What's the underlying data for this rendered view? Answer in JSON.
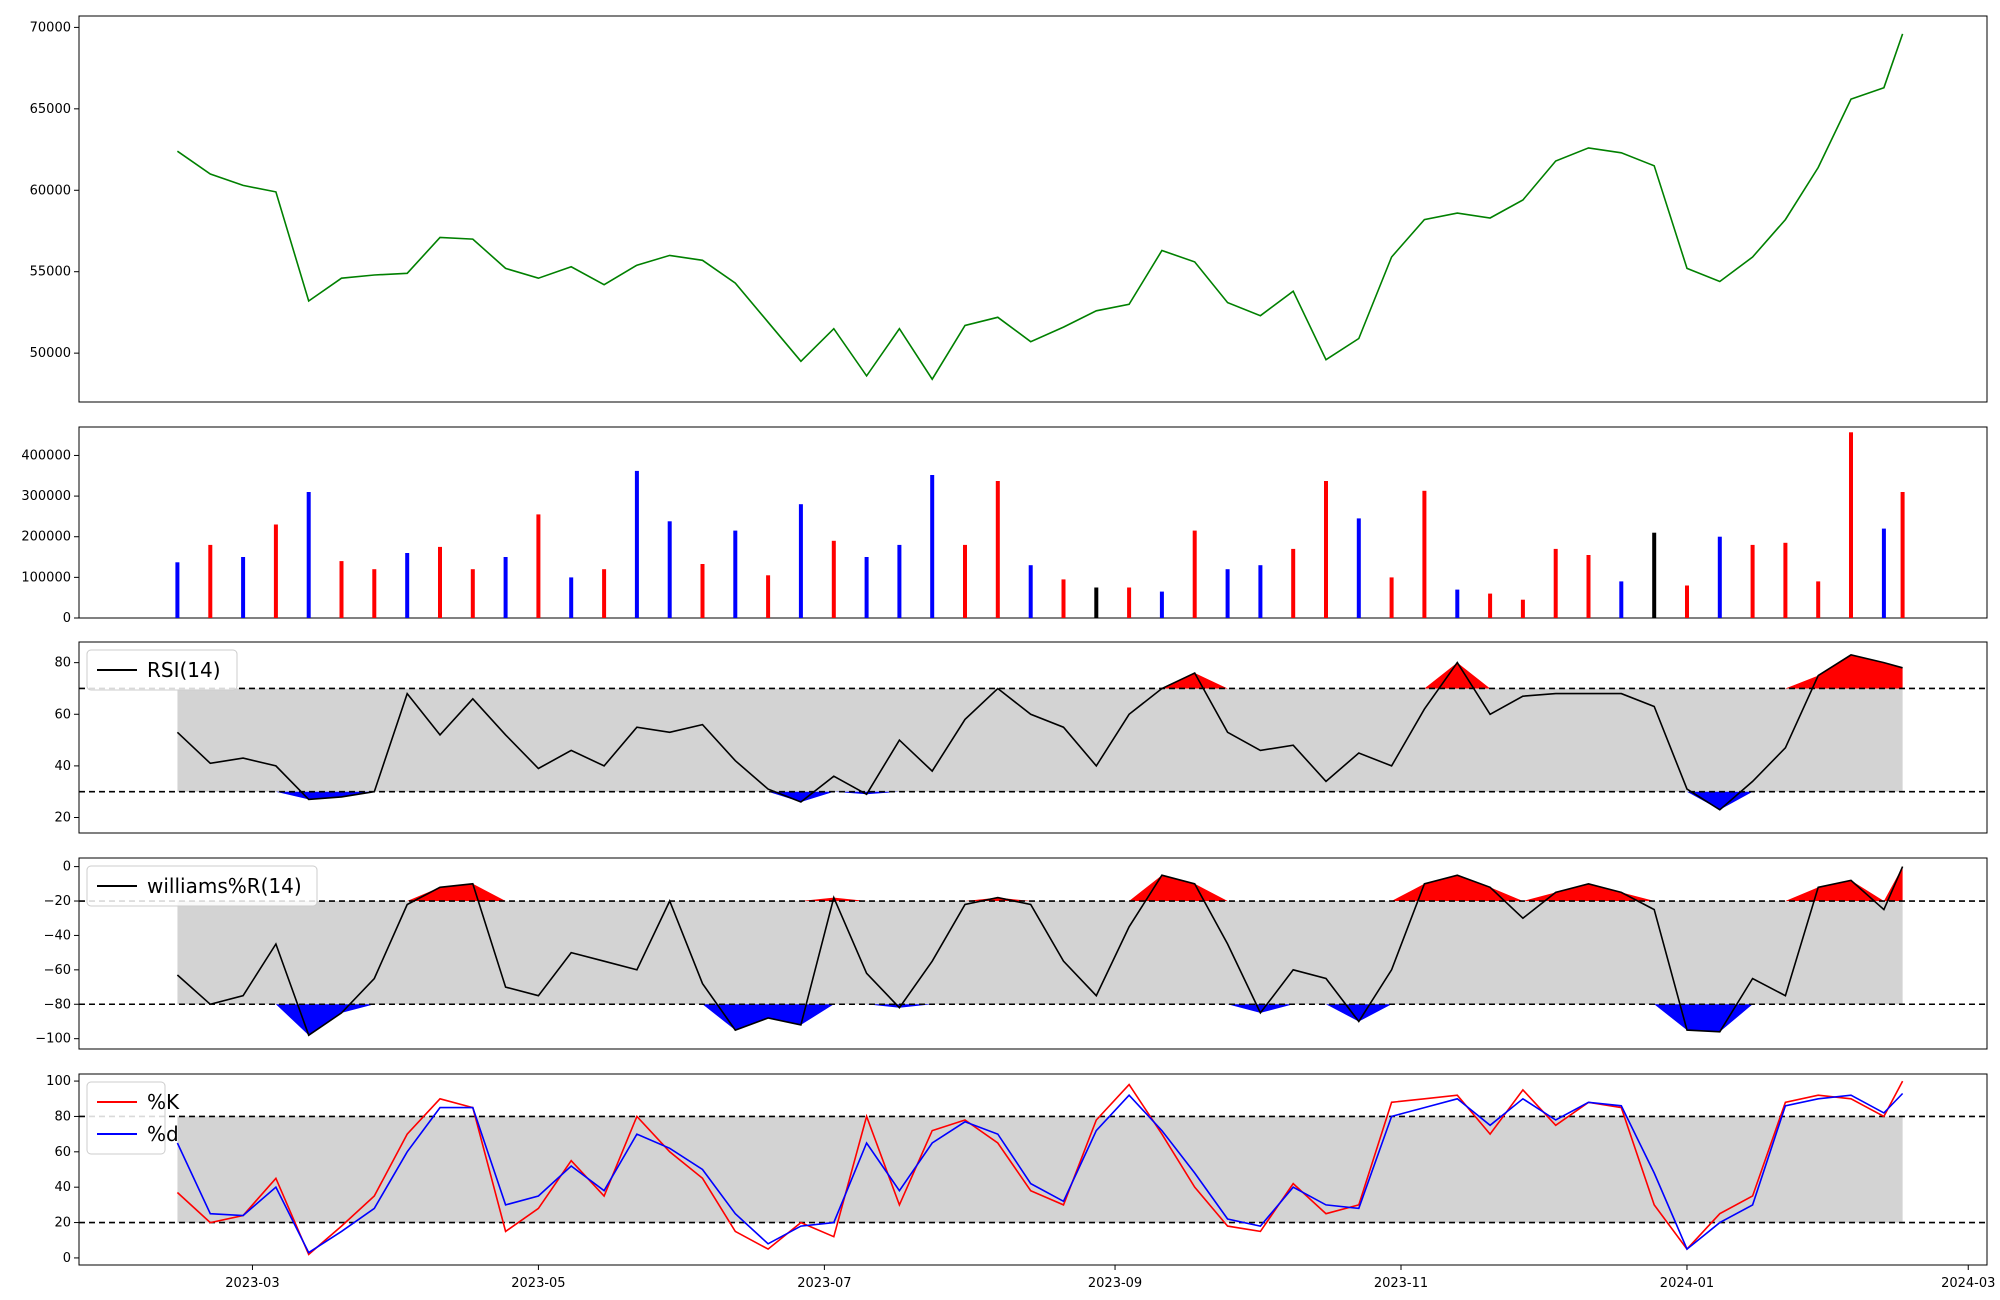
{
  "chart_data": [
    {
      "type": "line",
      "panel": "price",
      "color": "#008000",
      "ylim": [
        47000,
        70700
      ],
      "yticks": [
        "50000",
        "55000",
        "60000",
        "65000",
        "70000"
      ],
      "x": [
        "2023-02-13",
        "2023-02-20",
        "2023-02-27",
        "2023-03-06",
        "2023-03-13",
        "2023-03-20",
        "2023-03-27",
        "2023-04-03",
        "2023-04-10",
        "2023-04-17",
        "2023-04-24",
        "2023-05-01",
        "2023-05-08",
        "2023-05-15",
        "2023-05-22",
        "2023-05-29",
        "2023-06-05",
        "2023-06-12",
        "2023-06-19",
        "2023-06-26",
        "2023-07-03",
        "2023-07-10",
        "2023-07-17",
        "2023-07-24",
        "2023-07-31",
        "2023-08-07",
        "2023-08-14",
        "2023-08-21",
        "2023-08-28",
        "2023-09-04",
        "2023-09-11",
        "2023-09-18",
        "2023-09-25",
        "2023-10-02",
        "2023-10-09",
        "2023-10-16",
        "2023-10-23",
        "2023-10-30",
        "2023-11-06",
        "2023-11-13",
        "2023-11-20",
        "2023-11-27",
        "2023-12-04",
        "2023-12-11",
        "2023-12-18",
        "2023-12-25",
        "2024-01-01",
        "2024-01-08",
        "2024-01-15",
        "2024-01-22",
        "2024-01-29",
        "2024-02-05",
        "2024-02-12",
        "2024-02-16"
      ],
      "y": [
        62400,
        61000,
        60300,
        59900,
        53200,
        54600,
        54800,
        54900,
        57100,
        57000,
        55200,
        54600,
        55300,
        54200,
        55400,
        56000,
        55700,
        54300,
        51900,
        49500,
        51500,
        48600,
        51500,
        48400,
        51700,
        52200,
        50700,
        51600,
        52600,
        53000,
        56300,
        55600,
        53100,
        52300,
        53800,
        49600,
        50900,
        55900,
        58200,
        58600,
        58300,
        59400,
        61800,
        62600,
        62300,
        61500,
        55200,
        54400,
        55900,
        58200,
        61400,
        65600,
        66300,
        69600
      ]
    },
    {
      "type": "bar",
      "panel": "volume",
      "ylim": [
        0,
        470000
      ],
      "yticks": [
        "0",
        "100000",
        "200000",
        "300000",
        "400000"
      ],
      "up_color": "#ff0000",
      "down_color": "#0000ff",
      "flat_color": "#000000",
      "x": [
        "2023-02-13",
        "2023-02-20",
        "2023-02-27",
        "2023-03-06",
        "2023-03-13",
        "2023-03-20",
        "2023-03-27",
        "2023-04-03",
        "2023-04-10",
        "2023-04-17",
        "2023-04-24",
        "2023-05-01",
        "2023-05-08",
        "2023-05-15",
        "2023-05-22",
        "2023-05-29",
        "2023-06-05",
        "2023-06-12",
        "2023-06-19",
        "2023-06-26",
        "2023-07-03",
        "2023-07-10",
        "2023-07-17",
        "2023-07-24",
        "2023-07-31",
        "2023-08-07",
        "2023-08-14",
        "2023-08-21",
        "2023-08-28",
        "2023-09-04",
        "2023-09-11",
        "2023-09-18",
        "2023-09-25",
        "2023-10-02",
        "2023-10-09",
        "2023-10-16",
        "2023-10-23",
        "2023-10-30",
        "2023-11-06",
        "2023-11-13",
        "2023-11-20",
        "2023-11-27",
        "2023-12-04",
        "2023-12-11",
        "2023-12-18",
        "2023-12-25",
        "2024-01-01",
        "2024-01-08",
        "2024-01-15",
        "2024-01-22",
        "2024-01-29",
        "2024-02-05",
        "2024-02-12",
        "2024-02-16"
      ],
      "values": [
        137000,
        180000,
        150000,
        230000,
        310000,
        140000,
        120000,
        160000,
        175000,
        120000,
        150000,
        255000,
        100000,
        120000,
        362000,
        238000,
        133000,
        215000,
        105000,
        280000,
        190000,
        150000,
        180000,
        352000,
        180000,
        337000,
        130000,
        95000,
        75000,
        75000,
        65000,
        215000,
        120000,
        130000,
        170000,
        337000,
        245000,
        100000,
        313000,
        70000,
        60000,
        45000,
        170000,
        155000,
        90000,
        210000,
        80000,
        200000,
        180000,
        185000,
        90000,
        457000,
        220000,
        310000
      ],
      "direction": [
        "down",
        "up",
        "down",
        "up",
        "down",
        "up",
        "up",
        "down",
        "up",
        "up",
        "down",
        "up",
        "down",
        "up",
        "down",
        "down",
        "up",
        "down",
        "up",
        "down",
        "up",
        "down",
        "down",
        "down",
        "up",
        "up",
        "down",
        "up",
        "flat",
        "up",
        "down",
        "up",
        "down",
        "down",
        "up",
        "up",
        "down",
        "up",
        "up",
        "down",
        "up",
        "up",
        "up",
        "up",
        "down",
        "flat",
        "up",
        "down",
        "up",
        "up",
        "up",
        "up",
        "down",
        "up"
      ]
    },
    {
      "type": "line",
      "panel": "rsi",
      "legend": "RSI(14)",
      "color": "#000000",
      "ylim": [
        14,
        88
      ],
      "yticks": [
        "20",
        "40",
        "60",
        "80"
      ],
      "bands": {
        "upper": 70,
        "lower": 30,
        "fill": "#d3d3d3",
        "overbought_fill": "#ff0000",
        "oversold_fill": "#0000ff"
      },
      "x": [
        "2023-02-13",
        "2023-02-20",
        "2023-02-27",
        "2023-03-06",
        "2023-03-13",
        "2023-03-20",
        "2023-03-27",
        "2023-04-03",
        "2023-04-10",
        "2023-04-17",
        "2023-04-24",
        "2023-05-01",
        "2023-05-08",
        "2023-05-15",
        "2023-05-22",
        "2023-05-29",
        "2023-06-05",
        "2023-06-12",
        "2023-06-19",
        "2023-06-26",
        "2023-07-03",
        "2023-07-10",
        "2023-07-17",
        "2023-07-24",
        "2023-07-31",
        "2023-08-07",
        "2023-08-14",
        "2023-08-21",
        "2023-08-28",
        "2023-09-04",
        "2023-09-11",
        "2023-09-18",
        "2023-09-25",
        "2023-10-02",
        "2023-10-09",
        "2023-10-16",
        "2023-10-23",
        "2023-10-30",
        "2023-11-06",
        "2023-11-13",
        "2023-11-20",
        "2023-11-27",
        "2023-12-04",
        "2023-12-11",
        "2023-12-18",
        "2023-12-25",
        "2024-01-01",
        "2024-01-08",
        "2024-01-15",
        "2024-01-22",
        "2024-01-29",
        "2024-02-05",
        "2024-02-12",
        "2024-02-16"
      ],
      "y": [
        53,
        41,
        43,
        40,
        27,
        28,
        30,
        68,
        52,
        66,
        52,
        39,
        46,
        40,
        55,
        53,
        56,
        42,
        31,
        26,
        36,
        29,
        50,
        38,
        58,
        70,
        60,
        55,
        40,
        60,
        70,
        76,
        53,
        46,
        48,
        34,
        45,
        40,
        62,
        80,
        60,
        67,
        68,
        68,
        68,
        63,
        31,
        23,
        34,
        47,
        75,
        83,
        80,
        78
      ]
    },
    {
      "type": "line",
      "panel": "williams",
      "legend": "williams%R(14)",
      "color": "#000000",
      "ylim": [
        -106,
        5
      ],
      "yticks": [
        "0",
        "−20",
        "−40",
        "−60",
        "−80",
        "−100"
      ],
      "bands": {
        "upper": -20,
        "lower": -80,
        "fill": "#d3d3d3",
        "overbought_fill": "#ff0000",
        "oversold_fill": "#0000ff"
      },
      "x": [
        "2023-02-13",
        "2023-02-20",
        "2023-02-27",
        "2023-03-06",
        "2023-03-13",
        "2023-03-20",
        "2023-03-27",
        "2023-04-03",
        "2023-04-10",
        "2023-04-17",
        "2023-04-24",
        "2023-05-01",
        "2023-05-08",
        "2023-05-15",
        "2023-05-22",
        "2023-05-29",
        "2023-06-05",
        "2023-06-12",
        "2023-06-19",
        "2023-06-26",
        "2023-07-03",
        "2023-07-10",
        "2023-07-17",
        "2023-07-24",
        "2023-07-31",
        "2023-08-07",
        "2023-08-14",
        "2023-08-21",
        "2023-08-28",
        "2023-09-04",
        "2023-09-11",
        "2023-09-18",
        "2023-09-25",
        "2023-10-02",
        "2023-10-09",
        "2023-10-16",
        "2023-10-23",
        "2023-10-30",
        "2023-11-06",
        "2023-11-13",
        "2023-11-20",
        "2023-11-27",
        "2023-12-04",
        "2023-12-11",
        "2023-12-18",
        "2023-12-25",
        "2024-01-01",
        "2024-01-08",
        "2024-01-15",
        "2024-01-22",
        "2024-01-29",
        "2024-02-05",
        "2024-02-12",
        "2024-02-16"
      ],
      "y": [
        -63,
        -80,
        -75,
        -45,
        -98,
        -85,
        -65,
        -22,
        -12,
        -10,
        -70,
        -75,
        -50,
        -55,
        -60,
        -20,
        -68,
        -95,
        -88,
        -92,
        -18,
        -62,
        -82,
        -55,
        -22,
        -18,
        -22,
        -55,
        -75,
        -35,
        -5,
        -10,
        -45,
        -85,
        -60,
        -65,
        -90,
        -60,
        -10,
        -5,
        -12,
        -30,
        -15,
        -10,
        -15,
        -25,
        -95,
        -96,
        -65,
        -75,
        -12,
        -8,
        -25,
        0
      ]
    },
    {
      "type": "line",
      "panel": "stochastic",
      "ylim": [
        -4,
        104
      ],
      "yticks": [
        "0",
        "20",
        "40",
        "60",
        "80",
        "100"
      ],
      "bands": {
        "upper": 80,
        "lower": 20,
        "fill": "#d3d3d3"
      },
      "xticks": [
        "2023-03",
        "2023-05",
        "2023-07",
        "2023-09",
        "2023-11",
        "2024-01",
        "2024-03"
      ],
      "xlim": [
        "2023-01-23",
        "2024-03-05"
      ],
      "x": [
        "2023-02-13",
        "2023-02-20",
        "2023-02-27",
        "2023-03-06",
        "2023-03-13",
        "2023-03-20",
        "2023-03-27",
        "2023-04-03",
        "2023-04-10",
        "2023-04-17",
        "2023-04-24",
        "2023-05-01",
        "2023-05-08",
        "2023-05-15",
        "2023-05-22",
        "2023-05-29",
        "2023-06-05",
        "2023-06-12",
        "2023-06-19",
        "2023-06-26",
        "2023-07-03",
        "2023-07-10",
        "2023-07-17",
        "2023-07-24",
        "2023-07-31",
        "2023-08-07",
        "2023-08-14",
        "2023-08-21",
        "2023-08-28",
        "2023-09-04",
        "2023-09-11",
        "2023-09-18",
        "2023-09-25",
        "2023-10-02",
        "2023-10-09",
        "2023-10-16",
        "2023-10-23",
        "2023-10-30",
        "2023-11-06",
        "2023-11-13",
        "2023-11-20",
        "2023-11-27",
        "2023-12-04",
        "2023-12-11",
        "2023-12-18",
        "2023-12-25",
        "2024-01-01",
        "2024-01-08",
        "2024-01-15",
        "2024-01-22",
        "2024-01-29",
        "2024-02-05",
        "2024-02-12",
        "2024-02-16"
      ],
      "series": [
        {
          "name": "%K",
          "color": "#ff0000",
          "y": [
            37,
            20,
            24,
            45,
            2,
            18,
            35,
            70,
            90,
            85,
            15,
            28,
            55,
            35,
            80,
            60,
            45,
            15,
            5,
            20,
            12,
            80,
            30,
            72,
            78,
            65,
            38,
            30,
            78,
            98,
            70,
            40,
            18,
            15,
            42,
            25,
            30,
            88,
            90,
            92,
            70,
            95,
            75,
            88,
            85,
            30,
            5,
            25,
            35,
            88,
            92,
            90,
            80,
            100
          ]
        },
        {
          "name": "%d",
          "color": "#0000ff",
          "y": [
            65,
            25,
            24,
            40,
            3,
            15,
            28,
            60,
            85,
            85,
            30,
            35,
            52,
            38,
            70,
            62,
            50,
            25,
            8,
            18,
            20,
            65,
            38,
            65,
            77,
            70,
            42,
            32,
            72,
            92,
            72,
            48,
            22,
            18,
            40,
            30,
            28,
            80,
            85,
            90,
            75,
            90,
            78,
            88,
            86,
            48,
            5,
            20,
            30,
            86,
            90,
            92,
            82,
            93
          ]
        }
      ]
    }
  ]
}
